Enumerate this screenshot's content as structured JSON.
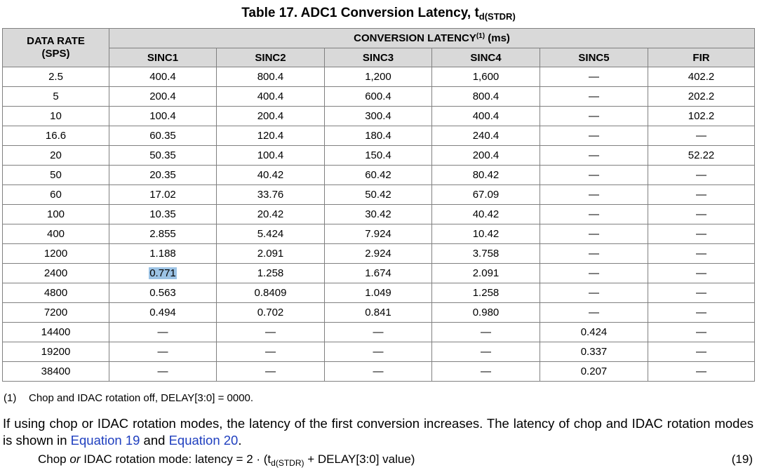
{
  "title": {
    "main": "Table 17. ADC1 Conversion Latency, t",
    "sub": "d(STDR)"
  },
  "header": {
    "rate_line1": "DATA RATE",
    "rate_line2": "(SPS)",
    "group": "CONVERSION LATENCY",
    "group_note": "(1)",
    "group_unit": " (ms)",
    "cols": [
      "SINC1",
      "SINC2",
      "SINC3",
      "SINC4",
      "SINC5",
      "FIR"
    ]
  },
  "rows": [
    [
      "2.5",
      "400.4",
      "800.4",
      "1,200",
      "1,600",
      "—",
      "402.2"
    ],
    [
      "5",
      "200.4",
      "400.4",
      "600.4",
      "800.4",
      "—",
      "202.2"
    ],
    [
      "10",
      "100.4",
      "200.4",
      "300.4",
      "400.4",
      "—",
      "102.2"
    ],
    [
      "16.6",
      "60.35",
      "120.4",
      "180.4",
      "240.4",
      "—",
      "—"
    ],
    [
      "20",
      "50.35",
      "100.4",
      "150.4",
      "200.4",
      "—",
      "52.22"
    ],
    [
      "50",
      "20.35",
      "40.42",
      "60.42",
      "80.42",
      "—",
      "—"
    ],
    [
      "60",
      "17.02",
      "33.76",
      "50.42",
      "67.09",
      "—",
      "—"
    ],
    [
      "100",
      "10.35",
      "20.42",
      "30.42",
      "40.42",
      "—",
      "—"
    ],
    [
      "400",
      "2.855",
      "5.424",
      "7.924",
      "10.42",
      "—",
      "—"
    ],
    [
      "1200",
      "1.188",
      "2.091",
      "2.924",
      "3.758",
      "—",
      "—"
    ],
    [
      "2400",
      "0.771",
      "1.258",
      "1.674",
      "2.091",
      "—",
      "—"
    ],
    [
      "4800",
      "0.563",
      "0.8409",
      "1.049",
      "1.258",
      "—",
      "—"
    ],
    [
      "7200",
      "0.494",
      "0.702",
      "0.841",
      "0.980",
      "—",
      "—"
    ],
    [
      "14400",
      "—",
      "—",
      "—",
      "—",
      "0.424",
      "—"
    ],
    [
      "19200",
      "—",
      "—",
      "—",
      "—",
      "0.337",
      "—"
    ],
    [
      "38400",
      "—",
      "—",
      "—",
      "—",
      "0.207",
      "—"
    ]
  ],
  "selected_cell": {
    "row": 10,
    "col": 1
  },
  "footnote": {
    "num": "(1)",
    "text": "Chop and IDAC rotation off, DELAY[3:0] = 0000."
  },
  "paragraph": {
    "part1": "If using chop or IDAC rotation modes, the latency of the first conversion increases. The latency of chop and IDAC rotation modes is shown in ",
    "link1": "Equation 19",
    "part2": " and ",
    "link2": "Equation 20",
    "part3": "."
  },
  "equation": {
    "part1": "Chop ",
    "or": "or",
    "part2": " IDAC rotation mode: latency = 2 · (t",
    "sub": "d(STDR)",
    "part3": " + DELAY[3:0] value)",
    "number": "(19)"
  }
}
